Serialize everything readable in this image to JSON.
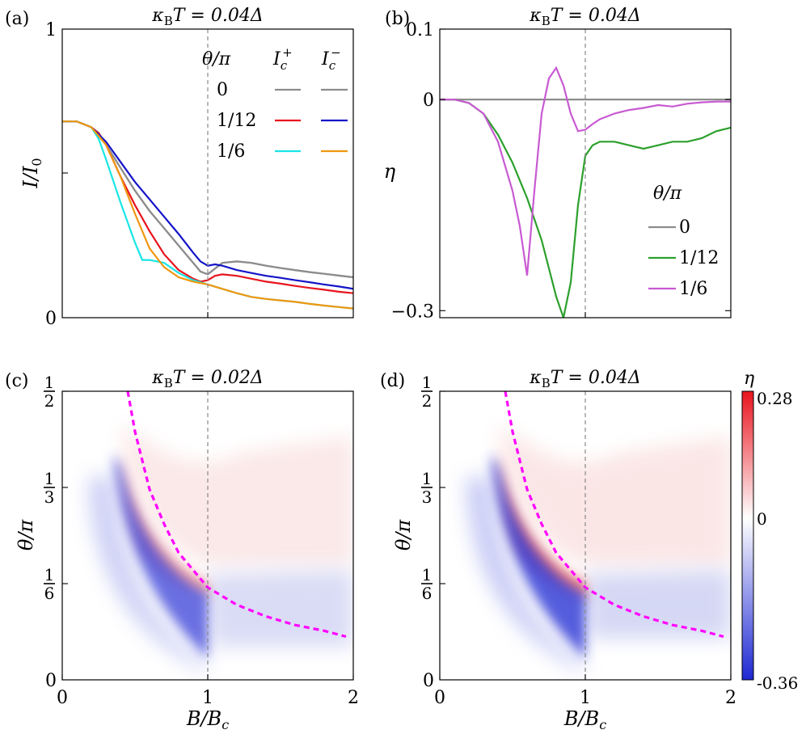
{
  "panels": {
    "a": {
      "tag": "(a)",
      "title_kappa": "κ",
      "title_sub": "B",
      "title_rest": "T = 0.04Δ",
      "ylabel_main": "I/I",
      "ylabel_sub": "0",
      "yticks": [
        "0",
        "1"
      ]
    },
    "b": {
      "tag": "(b)",
      "title_kappa": "κ",
      "title_sub": "B",
      "title_rest": "T = 0.04Δ",
      "ylabel": "η",
      "yticks": [
        "0.1",
        "0",
        "−0.3"
      ]
    },
    "c": {
      "tag": "(c)",
      "title_kappa": "κ",
      "title_sub": "B",
      "title_rest": "T = 0.02Δ",
      "ylabel": "θ/π",
      "xlabel_main": "B/B",
      "xlabel_sub": "c",
      "xticks": [
        "0",
        "1",
        "2"
      ],
      "ytick_zero": "0",
      "ytick_fracs": [
        {
          "num": "1",
          "den": "2"
        },
        {
          "num": "1",
          "den": "3"
        },
        {
          "num": "1",
          "den": "6"
        }
      ]
    },
    "d": {
      "tag": "(d)",
      "title_kappa": "κ",
      "title_sub": "B",
      "title_rest": "T = 0.04Δ",
      "ylabel": "θ/π",
      "xlabel_main": "B/B",
      "xlabel_sub": "c",
      "xticks": [
        "0",
        "1",
        "2"
      ],
      "ytick_zero": "0",
      "ytick_fracs": [
        {
          "num": "1",
          "den": "2"
        },
        {
          "num": "1",
          "den": "3"
        },
        {
          "num": "1",
          "den": "6"
        }
      ]
    }
  },
  "legend_a": {
    "header": "θ/π",
    "col_plus": "I",
    "col_plus_sub": "c",
    "col_plus_sup": "+",
    "col_minus": "I",
    "col_minus_sub": "c",
    "col_minus_sup": "−",
    "rows": [
      {
        "label": "0",
        "plus_color": "#8c8c8c",
        "minus_color": "#8c8c8c"
      },
      {
        "label": "1/12",
        "plus_color": "#e8141e",
        "minus_color": "#1414c8"
      },
      {
        "label": "1/6",
        "plus_color": "#19e6e6",
        "minus_color": "#f0960f"
      }
    ]
  },
  "legend_b": {
    "header": "θ/π",
    "rows": [
      {
        "label": "0",
        "color": "#8c8c8c"
      },
      {
        "label": "1/12",
        "color": "#2ca02c"
      },
      {
        "label": "1/6",
        "color": "#c85ad2"
      }
    ]
  },
  "colorbar": {
    "label": "η",
    "max_label": "0.28",
    "mid_label": "0",
    "min_label": "-0.36",
    "max": 0.28,
    "min": -0.36,
    "positive_color": "#e8141e",
    "negative_color": "#1e28d2"
  },
  "chart_data": [
    {
      "id": "a",
      "type": "line",
      "title": "κB T = 0.04Δ",
      "xlabel": "B/Bc",
      "ylabel": "I/I0",
      "xlim": [
        0,
        2
      ],
      "ylim": [
        0,
        1
      ],
      "vline_x": 1.0,
      "series": [
        {
          "name": "θ/π=0 Ic+",
          "color": "#8c8c8c",
          "x": [
            0,
            0.1,
            0.2,
            0.3,
            0.4,
            0.5,
            0.6,
            0.7,
            0.8,
            0.9,
            0.95,
            1.0,
            1.05,
            1.1,
            1.2,
            1.3,
            1.4,
            1.5,
            1.6,
            1.7,
            1.8,
            1.9,
            2.0
          ],
          "y": [
            0.68,
            0.68,
            0.66,
            0.6,
            0.52,
            0.44,
            0.37,
            0.31,
            0.25,
            0.19,
            0.16,
            0.15,
            0.17,
            0.19,
            0.195,
            0.19,
            0.18,
            0.172,
            0.165,
            0.158,
            0.152,
            0.146,
            0.14
          ]
        },
        {
          "name": "θ/π=0 Ic−",
          "color": "#8c8c8c",
          "x": [
            0,
            0.1,
            0.2,
            0.3,
            0.4,
            0.5,
            0.6,
            0.7,
            0.8,
            0.9,
            0.95,
            1.0,
            1.05,
            1.1,
            1.2,
            1.3,
            1.4,
            1.5,
            1.6,
            1.7,
            1.8,
            1.9,
            2.0
          ],
          "y": [
            0.68,
            0.68,
            0.66,
            0.6,
            0.52,
            0.44,
            0.37,
            0.31,
            0.25,
            0.19,
            0.16,
            0.15,
            0.17,
            0.19,
            0.195,
            0.19,
            0.18,
            0.172,
            0.165,
            0.158,
            0.152,
            0.146,
            0.14
          ]
        },
        {
          "name": "θ/π=1/12 Ic+",
          "color": "#e8141e",
          "x": [
            0,
            0.1,
            0.2,
            0.25,
            0.3,
            0.4,
            0.5,
            0.6,
            0.7,
            0.8,
            0.9,
            0.95,
            1.0,
            1.05,
            1.1,
            1.2,
            1.3,
            1.4,
            1.5,
            1.6,
            1.7,
            1.8,
            1.9,
            2.0
          ],
          "y": [
            0.68,
            0.68,
            0.66,
            0.64,
            0.6,
            0.49,
            0.39,
            0.3,
            0.22,
            0.165,
            0.135,
            0.125,
            0.13,
            0.145,
            0.15,
            0.145,
            0.135,
            0.125,
            0.118,
            0.11,
            0.103,
            0.097,
            0.09,
            0.085
          ]
        },
        {
          "name": "θ/π=1/12 Ic−",
          "color": "#1414c8",
          "x": [
            0,
            0.1,
            0.2,
            0.3,
            0.4,
            0.5,
            0.6,
            0.7,
            0.8,
            0.9,
            0.95,
            1.0,
            1.05,
            1.1,
            1.2,
            1.3,
            1.4,
            1.5,
            1.6,
            1.7,
            1.8,
            1.9,
            2.0
          ],
          "y": [
            0.68,
            0.68,
            0.66,
            0.61,
            0.54,
            0.47,
            0.41,
            0.35,
            0.29,
            0.225,
            0.195,
            0.18,
            0.185,
            0.18,
            0.165,
            0.155,
            0.145,
            0.138,
            0.13,
            0.123,
            0.115,
            0.108,
            0.1
          ]
        },
        {
          "name": "θ/π=1/6 Ic+",
          "color": "#19e6e6",
          "x": [
            0,
            0.1,
            0.2,
            0.25,
            0.3,
            0.4,
            0.5,
            0.55,
            0.6,
            0.7,
            0.8,
            0.9,
            1.0,
            1.1,
            1.2,
            1.3,
            1.4,
            1.5,
            1.6,
            1.7,
            1.8,
            1.9,
            2.0
          ],
          "y": [
            0.68,
            0.68,
            0.66,
            0.62,
            0.55,
            0.4,
            0.26,
            0.2,
            0.2,
            0.19,
            0.155,
            0.13,
            0.115,
            0.1,
            0.085,
            0.072,
            0.065,
            0.06,
            0.055,
            0.048,
            0.042,
            0.037,
            0.032
          ]
        },
        {
          "name": "θ/π=1/6 Ic−",
          "color": "#f0960f",
          "x": [
            0,
            0.1,
            0.2,
            0.3,
            0.4,
            0.5,
            0.6,
            0.7,
            0.8,
            0.9,
            1.0,
            1.1,
            1.2,
            1.3,
            1.4,
            1.5,
            1.6,
            1.7,
            1.8,
            1.9,
            2.0
          ],
          "y": [
            0.68,
            0.68,
            0.66,
            0.6,
            0.49,
            0.36,
            0.24,
            0.175,
            0.14,
            0.125,
            0.115,
            0.1,
            0.085,
            0.072,
            0.065,
            0.06,
            0.055,
            0.048,
            0.042,
            0.037,
            0.032
          ]
        }
      ]
    },
    {
      "id": "b",
      "type": "line",
      "title": "κB T = 0.04Δ",
      "xlabel": "B/Bc",
      "ylabel": "η",
      "xlim": [
        0,
        2
      ],
      "ylim": [
        -0.31,
        0.1
      ],
      "yticks": [
        0.1,
        0,
        -0.3
      ],
      "vline_x": 1.0,
      "series": [
        {
          "name": "θ/π=0",
          "color": "#8c8c8c",
          "x": [
            0,
            2.0
          ],
          "y": [
            0,
            0
          ]
        },
        {
          "name": "θ/π=1/12",
          "color": "#2ca02c",
          "x": [
            0,
            0.1,
            0.2,
            0.3,
            0.4,
            0.5,
            0.6,
            0.7,
            0.75,
            0.8,
            0.85,
            0.9,
            0.95,
            1.0,
            1.05,
            1.1,
            1.2,
            1.3,
            1.4,
            1.5,
            1.6,
            1.7,
            1.8,
            1.9,
            2.0
          ],
          "y": [
            0,
            0,
            -0.005,
            -0.02,
            -0.05,
            -0.09,
            -0.14,
            -0.2,
            -0.24,
            -0.28,
            -0.31,
            -0.26,
            -0.15,
            -0.08,
            -0.065,
            -0.06,
            -0.06,
            -0.065,
            -0.07,
            -0.065,
            -0.06,
            -0.06,
            -0.055,
            -0.045,
            -0.04
          ]
        },
        {
          "name": "θ/π=1/6",
          "color": "#c85ad2",
          "x": [
            0,
            0.1,
            0.2,
            0.3,
            0.4,
            0.5,
            0.55,
            0.6,
            0.65,
            0.7,
            0.75,
            0.8,
            0.85,
            0.9,
            0.95,
            1.0,
            1.05,
            1.1,
            1.2,
            1.3,
            1.4,
            1.5,
            1.6,
            1.7,
            1.8,
            1.9,
            2.0
          ],
          "y": [
            0,
            0,
            -0.005,
            -0.02,
            -0.06,
            -0.13,
            -0.18,
            -0.25,
            -0.13,
            -0.02,
            0.03,
            0.045,
            0.02,
            -0.02,
            -0.045,
            -0.043,
            -0.035,
            -0.028,
            -0.02,
            -0.015,
            -0.012,
            -0.008,
            -0.01,
            -0.006,
            -0.004,
            -0.003,
            -0.003
          ]
        }
      ]
    },
    {
      "id": "c",
      "type": "heatmap",
      "title": "κB T = 0.02Δ",
      "xlabel": "B/Bc",
      "ylabel": "θ/π",
      "xlim": [
        0,
        2
      ],
      "ylim": [
        0,
        0.5
      ],
      "vline_x": 1.0,
      "curve": {
        "color": "#ff00ff",
        "x": [
          0.45,
          0.5,
          0.6,
          0.7,
          0.8,
          0.9,
          1.0,
          1.2,
          1.4,
          1.6,
          1.8,
          1.95
        ],
        "y": [
          0.5,
          0.43,
          0.33,
          0.27,
          0.22,
          0.19,
          0.16,
          0.13,
          0.11,
          0.095,
          0.085,
          0.075
        ]
      },
      "colorbar_range": [
        -0.36,
        0.28
      ]
    },
    {
      "id": "d",
      "type": "heatmap",
      "title": "κB T = 0.04Δ",
      "xlabel": "B/Bc",
      "ylabel": "θ/π",
      "xlim": [
        0,
        2
      ],
      "ylim": [
        0,
        0.5
      ],
      "vline_x": 1.0,
      "curve": {
        "color": "#ff00ff",
        "x": [
          0.45,
          0.5,
          0.6,
          0.7,
          0.8,
          0.9,
          1.0,
          1.2,
          1.4,
          1.6,
          1.8,
          1.95
        ],
        "y": [
          0.5,
          0.43,
          0.33,
          0.27,
          0.22,
          0.19,
          0.16,
          0.13,
          0.11,
          0.095,
          0.085,
          0.075
        ]
      },
      "colorbar_range": [
        -0.36,
        0.28
      ]
    }
  ]
}
